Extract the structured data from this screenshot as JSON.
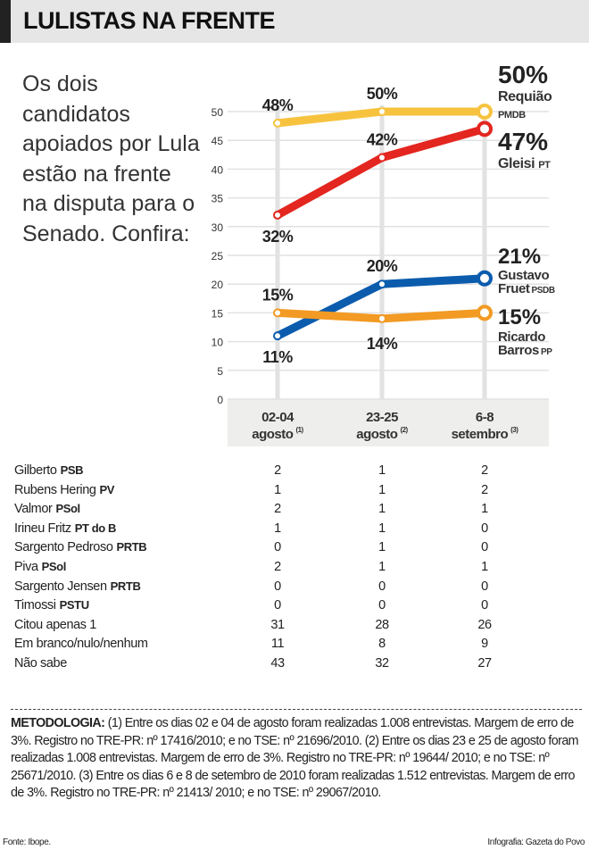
{
  "title": "LULISTAS NA FRENTE",
  "intro": "Os dois candidatos apoiados por Lula estão na frente na disputa para o Senado. Confira:",
  "chart_data": {
    "type": "line",
    "categories": [
      {
        "line1": "02-04",
        "line2": "agosto",
        "note": "(1)"
      },
      {
        "line1": "23-25",
        "line2": "agosto",
        "note": "(2)"
      },
      {
        "line1": "6-8",
        "line2": "setembro",
        "note": "(3)"
      }
    ],
    "ylim": [
      0,
      50
    ],
    "yticks": [
      0,
      5,
      10,
      15,
      20,
      25,
      30,
      35,
      40,
      45,
      50
    ],
    "grid": true,
    "series": [
      {
        "name": "Requião",
        "party": "PMDB",
        "color": "#f7c33f",
        "values": [
          48,
          50,
          50
        ],
        "labels": [
          "48%",
          "50%",
          "50%"
        ]
      },
      {
        "name": "Gleisi",
        "party": "PT",
        "color": "#e3261f",
        "values": [
          32,
          42,
          47
        ],
        "labels": [
          "32%",
          "42%",
          "47%"
        ]
      },
      {
        "name": "Gustavo Fruet",
        "party": "PSDB",
        "color": "#0b5cad",
        "values": [
          11,
          20,
          21
        ],
        "labels": [
          "11%",
          "20%",
          "21%"
        ]
      },
      {
        "name": "Ricardo Barros",
        "party": "PP",
        "color": "#f29a23",
        "values": [
          15,
          14,
          15
        ],
        "labels": [
          "15%",
          "14%",
          "15%"
        ]
      }
    ]
  },
  "table": {
    "rows": [
      {
        "name": "Gilberto",
        "party": "PSB",
        "values": [
          "2",
          "1",
          "2"
        ]
      },
      {
        "name": "Rubens Hering",
        "party": "PV",
        "values": [
          "1",
          "1",
          "2"
        ]
      },
      {
        "name": "Valmor",
        "party": "PSol",
        "values": [
          "2",
          "1",
          "1"
        ]
      },
      {
        "name": "Irineu Fritz",
        "party": "PT do B",
        "values": [
          "1",
          "1",
          "0"
        ]
      },
      {
        "name": "Sargento Pedroso",
        "party": "PRTB",
        "values": [
          "0",
          "1",
          "0"
        ]
      },
      {
        "name": "Piva",
        "party": "PSol",
        "values": [
          "2",
          "1",
          "1"
        ]
      },
      {
        "name": "Sargento Jensen",
        "party": "PRTB",
        "values": [
          "0",
          "0",
          "0"
        ]
      },
      {
        "name": "Timossi",
        "party": "PSTU",
        "values": [
          "0",
          "0",
          "0"
        ]
      },
      {
        "name": "Citou apenas 1",
        "party": "",
        "values": [
          "31",
          "28",
          "26"
        ]
      },
      {
        "name": "Em branco/nulo/nenhum",
        "party": "",
        "values": [
          "11",
          "8",
          "9"
        ]
      },
      {
        "name": "Não sabe",
        "party": "",
        "values": [
          "43",
          "32",
          "27"
        ]
      }
    ]
  },
  "metodologia": {
    "label": "METODOLOGIA:",
    "text": " (1) Entre os dias 02 e 04 de agosto foram realizadas 1.008 entrevistas. Margem de erro de 3%. Registro no TRE-PR: nº 17416/2010; e no TSE: nº 21696/2010. (2) Entre os dias 23 e 25 de agosto foram realizadas 1.008 entrevistas. Margem de erro de 3%. Registro no TRE-PR: nº 19644/ 2010; e no TSE: nº 25671/2010. (3) Entre os dias 6 e 8 de setembro de 2010 foram realizadas 1.512 entrevistas. Margem de erro de 3%. Registro no TRE-PR: nº 21413/ 2010; e no TSE: nº 29067/2010."
  },
  "fonte": "Fonte: Ibope.",
  "credit": "Infografia: Gazeta do Povo"
}
